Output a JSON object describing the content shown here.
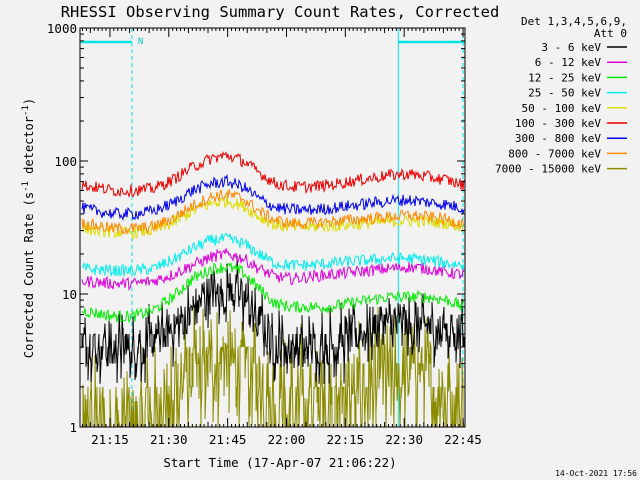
{
  "chart_data": {
    "type": "line",
    "title": "RHESSI Observing Summary Count Rates, Corrected",
    "xlabel": "Start Time (17-Apr-07 21:06:22)",
    "ylabel_main": "Corrected Count Rate (s",
    "ylabel_sup1": "-1",
    "ylabel_mid": " detector",
    "ylabel_sup2": "-1",
    "ylabel_end": ")",
    "yscale": "log",
    "ylim": [
      1,
      1000
    ],
    "xlim_min": [
      6.37,
      104.5
    ],
    "x_ticks": [
      {
        "t": 14,
        "label": "21:15"
      },
      {
        "t": 29,
        "label": "21:30"
      },
      {
        "t": 44,
        "label": "21:45"
      },
      {
        "t": 59,
        "label": "22:00"
      },
      {
        "t": 74,
        "label": "22:15"
      },
      {
        "t": 89,
        "label": "22:30"
      },
      {
        "t": 104,
        "label": "22:45"
      }
    ],
    "y_ticks": [
      {
        "v": 1,
        "label": "1"
      },
      {
        "v": 10,
        "label": "10"
      },
      {
        "v": 100,
        "label": "100"
      },
      {
        "v": 1000,
        "label": "1000"
      }
    ],
    "legend_header": [
      "Det 1,3,4,5,6,9,",
      "Att 0"
    ],
    "legend_position": "right",
    "series": [
      {
        "name": "3 - 6 keV",
        "color": "#000000",
        "base": 4.2,
        "peak": 11.0,
        "noise": 0.18,
        "t": [
          7,
          15,
          20,
          25,
          30,
          35,
          40,
          44,
          48,
          52,
          56,
          60,
          65,
          70,
          75,
          80,
          85,
          90,
          95,
          100,
          104
        ],
        "values": [
          4.0,
          4.0,
          4.0,
          4.2,
          5.5,
          7.5,
          10.0,
          11.0,
          9.5,
          6.0,
          4.2,
          4.0,
          4.0,
          4.2,
          4.5,
          5.5,
          5.8,
          5.8,
          5.5,
          5.2,
          5.0
        ]
      },
      {
        "name": "6 - 12 keV",
        "color": "#dd00dd",
        "t": [
          7,
          15,
          20,
          25,
          30,
          35,
          40,
          44,
          48,
          52,
          56,
          60,
          65,
          70,
          75,
          80,
          85,
          90,
          95,
          100,
          104
        ],
        "values": [
          12.5,
          12.0,
          12.0,
          12.5,
          14.0,
          16.5,
          19.0,
          20.0,
          18.5,
          15.5,
          13.5,
          13.0,
          13.5,
          14.0,
          14.5,
          15.0,
          15.5,
          16.0,
          15.5,
          14.5,
          14.0
        ]
      },
      {
        "name": "12 - 25 keV",
        "color": "#00ee00",
        "t": [
          7,
          15,
          20,
          25,
          30,
          35,
          40,
          44,
          48,
          52,
          56,
          60,
          65,
          70,
          75,
          80,
          85,
          90,
          95,
          100,
          104
        ],
        "values": [
          7.5,
          6.8,
          6.8,
          7.5,
          9.5,
          13.0,
          15.5,
          16.0,
          14.5,
          11.0,
          8.5,
          8.0,
          8.0,
          8.0,
          8.5,
          9.0,
          9.5,
          9.5,
          9.5,
          9.0,
          8.0
        ]
      },
      {
        "name": "25 - 50 keV",
        "color": "#00eeee",
        "t": [
          7,
          15,
          20,
          25,
          30,
          35,
          40,
          44,
          48,
          52,
          56,
          60,
          65,
          70,
          75,
          80,
          85,
          90,
          95,
          100,
          104
        ],
        "values": [
          15.5,
          15.0,
          15.0,
          15.5,
          18.0,
          22.0,
          25.5,
          26.0,
          24.0,
          20.0,
          17.0,
          16.5,
          16.5,
          17.0,
          17.5,
          18.0,
          18.5,
          18.5,
          18.0,
          17.0,
          16.5
        ]
      },
      {
        "name": "50 - 100 keV",
        "color": "#dddd00",
        "t": [
          7,
          15,
          20,
          25,
          30,
          35,
          40,
          44,
          48,
          52,
          56,
          60,
          65,
          70,
          75,
          80,
          85,
          90,
          95,
          100,
          104
        ],
        "values": [
          31.0,
          29.0,
          29.0,
          30.0,
          34.0,
          42.0,
          48.0,
          50.0,
          46.0,
          38.0,
          33.0,
          32.0,
          32.0,
          32.5,
          33.0,
          34.0,
          35.0,
          35.5,
          35.0,
          34.0,
          32.0
        ]
      },
      {
        "name": "100 - 300 keV",
        "color": "#ee0000",
        "t": [
          7,
          15,
          20,
          25,
          30,
          35,
          40,
          44,
          48,
          52,
          56,
          60,
          65,
          70,
          75,
          80,
          85,
          90,
          95,
          100,
          104
        ],
        "values": [
          66.0,
          60.0,
          60.0,
          62.0,
          72.0,
          90.0,
          105.0,
          110.0,
          100.0,
          82.0,
          68.0,
          64.0,
          64.0,
          66.0,
          70.0,
          74.0,
          78.0,
          80.0,
          76.0,
          72.0,
          66.0
        ]
      },
      {
        "name": "300 - 800 keV",
        "color": "#0000ee",
        "t": [
          7,
          15,
          20,
          25,
          30,
          35,
          40,
          44,
          48,
          52,
          56,
          60,
          65,
          70,
          75,
          80,
          85,
          90,
          95,
          100,
          104
        ],
        "values": [
          44.0,
          40.0,
          40.0,
          42.0,
          48.0,
          60.0,
          68.0,
          70.0,
          64.0,
          52.0,
          45.0,
          43.0,
          43.0,
          44.0,
          46.0,
          48.0,
          50.0,
          51.0,
          49.0,
          47.0,
          44.0
        ]
      },
      {
        "name": "800 - 7000 keV",
        "color": "#ff8800",
        "t": [
          7,
          15,
          20,
          25,
          30,
          35,
          40,
          44,
          48,
          52,
          56,
          60,
          65,
          70,
          75,
          80,
          85,
          90,
          95,
          100,
          104
        ],
        "values": [
          34.0,
          31.0,
          31.0,
          32.0,
          37.0,
          46.0,
          54.0,
          56.0,
          52.0,
          42.0,
          36.0,
          34.0,
          34.0,
          35.0,
          36.0,
          37.0,
          38.0,
          39.0,
          38.0,
          36.0,
          34.0
        ]
      },
      {
        "name": "7000 - 15000 keV",
        "color": "#8b8b00",
        "t": [
          7,
          15,
          20,
          25,
          30,
          35,
          40,
          44,
          48,
          52,
          56,
          60,
          65,
          70,
          75,
          80,
          85,
          90,
          95,
          100,
          104
        ],
        "values": [
          1.0,
          1.0,
          1.0,
          1.3,
          1.8,
          2.6,
          3.2,
          3.4,
          3.0,
          2.2,
          1.6,
          1.5,
          1.5,
          1.6,
          1.7,
          2.0,
          2.3,
          2.5,
          2.2,
          1.8,
          1.5
        ]
      }
    ],
    "night_intervals_min": [
      [
        6.37,
        19.6
      ],
      [
        87.5,
        104.5
      ]
    ],
    "night_label": "N",
    "footer_date": "14-Oct-2021 17:56"
  }
}
